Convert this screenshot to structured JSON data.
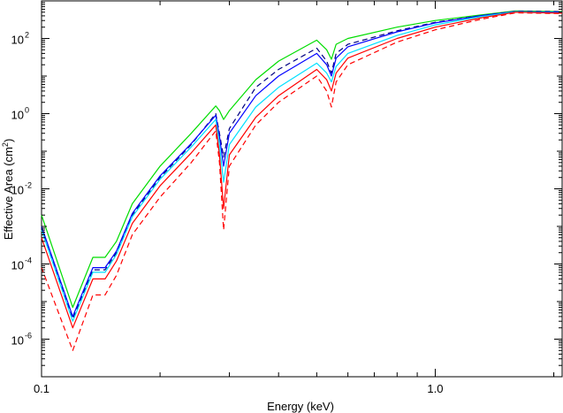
{
  "chart_data": {
    "type": "line",
    "title": "",
    "xlabel": "Energy (keV)",
    "ylabel": "Effective Area (cm",
    "ylabel_sup": "2",
    "ylabel_end": ")",
    "x_scale": "log",
    "y_scale": "log",
    "xlim": [
      0.1,
      2.1
    ],
    "ylim": [
      1e-07,
      1000
    ],
    "x_ticks": [
      {
        "value": 0.1,
        "label": "0.1"
      },
      {
        "value": 1.0,
        "label": "1.0"
      }
    ],
    "y_ticks": [
      {
        "value": 1e-06,
        "base": "10",
        "exp": "-6"
      },
      {
        "value": 0.0001,
        "base": "10",
        "exp": "-4"
      },
      {
        "value": 0.01,
        "base": "10",
        "exp": "-2"
      },
      {
        "value": 1,
        "base": "10",
        "exp": "0"
      },
      {
        "value": 100,
        "base": "10",
        "exp": "2"
      }
    ],
    "grid": false,
    "series": [
      {
        "name": "green",
        "color": "#00dd00",
        "dash": false,
        "x": [
          0.1,
          0.12,
          0.135,
          0.145,
          0.155,
          0.17,
          0.2,
          0.24,
          0.277,
          0.283,
          0.29,
          0.3,
          0.35,
          0.4,
          0.5,
          0.53,
          0.545,
          0.56,
          0.6,
          0.8,
          1.0,
          1.3,
          1.6,
          2.1
        ],
        "y": [
          0.002,
          7e-06,
          0.00015,
          0.00015,
          0.0004,
          0.004,
          0.04,
          0.3,
          1.6,
          1.2,
          0.7,
          1.2,
          8,
          25,
          90,
          50,
          28,
          70,
          100,
          200,
          300,
          420,
          540,
          520
        ]
      },
      {
        "name": "navy-dashed",
        "color": "#000080",
        "dash": true,
        "x": [
          0.1,
          0.12,
          0.135,
          0.145,
          0.155,
          0.17,
          0.2,
          0.24,
          0.277,
          0.283,
          0.29,
          0.3,
          0.35,
          0.4,
          0.5,
          0.53,
          0.545,
          0.56,
          0.6,
          0.8,
          1.0,
          1.3,
          1.6,
          2.1
        ],
        "y": [
          0.0009,
          3.5e-06,
          7e-05,
          7e-05,
          0.0002,
          0.002,
          0.02,
          0.15,
          1.0,
          0.3,
          0.07,
          0.4,
          5,
          15,
          55,
          25,
          12,
          40,
          70,
          160,
          270,
          400,
          530,
          520
        ]
      },
      {
        "name": "blue",
        "color": "#0000ff",
        "dash": false,
        "x": [
          0.1,
          0.12,
          0.135,
          0.145,
          0.155,
          0.17,
          0.2,
          0.24,
          0.277,
          0.283,
          0.29,
          0.3,
          0.35,
          0.4,
          0.5,
          0.53,
          0.545,
          0.56,
          0.6,
          0.8,
          1.0,
          1.3,
          1.6,
          2.1
        ],
        "y": [
          0.001,
          4e-06,
          8e-05,
          8e-05,
          0.00022,
          0.0022,
          0.022,
          0.16,
          0.9,
          0.25,
          0.04,
          0.3,
          3,
          10,
          40,
          20,
          10,
          30,
          60,
          150,
          260,
          400,
          520,
          500
        ]
      },
      {
        "name": "cyan",
        "color": "#00e0ff",
        "dash": false,
        "x": [
          0.1,
          0.12,
          0.135,
          0.145,
          0.155,
          0.17,
          0.2,
          0.24,
          0.277,
          0.283,
          0.29,
          0.3,
          0.35,
          0.4,
          0.5,
          0.53,
          0.545,
          0.56,
          0.6,
          0.8,
          1.0,
          1.3,
          1.6,
          2.1
        ],
        "y": [
          0.0008,
          3e-06,
          6e-05,
          6e-05,
          0.00018,
          0.0018,
          0.018,
          0.13,
          0.7,
          0.15,
          0.015,
          0.15,
          1.5,
          5,
          22,
          12,
          7,
          18,
          40,
          120,
          230,
          380,
          510,
          480
        ]
      },
      {
        "name": "red",
        "color": "#ff0000",
        "dash": false,
        "x": [
          0.1,
          0.12,
          0.135,
          0.145,
          0.155,
          0.17,
          0.2,
          0.24,
          0.277,
          0.283,
          0.29,
          0.3,
          0.35,
          0.4,
          0.5,
          0.53,
          0.545,
          0.56,
          0.6,
          0.8,
          1.0,
          1.3,
          1.6,
          2.1
        ],
        "y": [
          0.0005,
          2e-06,
          4e-05,
          4e-05,
          0.00012,
          0.0012,
          0.012,
          0.09,
          0.5,
          0.08,
          0.003,
          0.08,
          0.8,
          3,
          15,
          8,
          4,
          12,
          30,
          100,
          200,
          350,
          500,
          470
        ]
      },
      {
        "name": "red-dashed",
        "color": "#ff0000",
        "dash": true,
        "x": [
          0.1,
          0.12,
          0.135,
          0.145,
          0.155,
          0.17,
          0.2,
          0.24,
          0.277,
          0.283,
          0.29,
          0.3,
          0.35,
          0.4,
          0.5,
          0.53,
          0.545,
          0.56,
          0.6,
          0.8,
          1.0,
          1.3,
          1.6,
          2.1
        ],
        "y": [
          8e-05,
          5e-07,
          1.5e-05,
          1.5e-05,
          5e-05,
          0.0006,
          0.006,
          0.05,
          0.35,
          0.05,
          0.0008,
          0.04,
          0.5,
          2,
          10,
          4,
          1.5,
          7,
          20,
          80,
          170,
          320,
          480,
          460
        ]
      }
    ]
  }
}
